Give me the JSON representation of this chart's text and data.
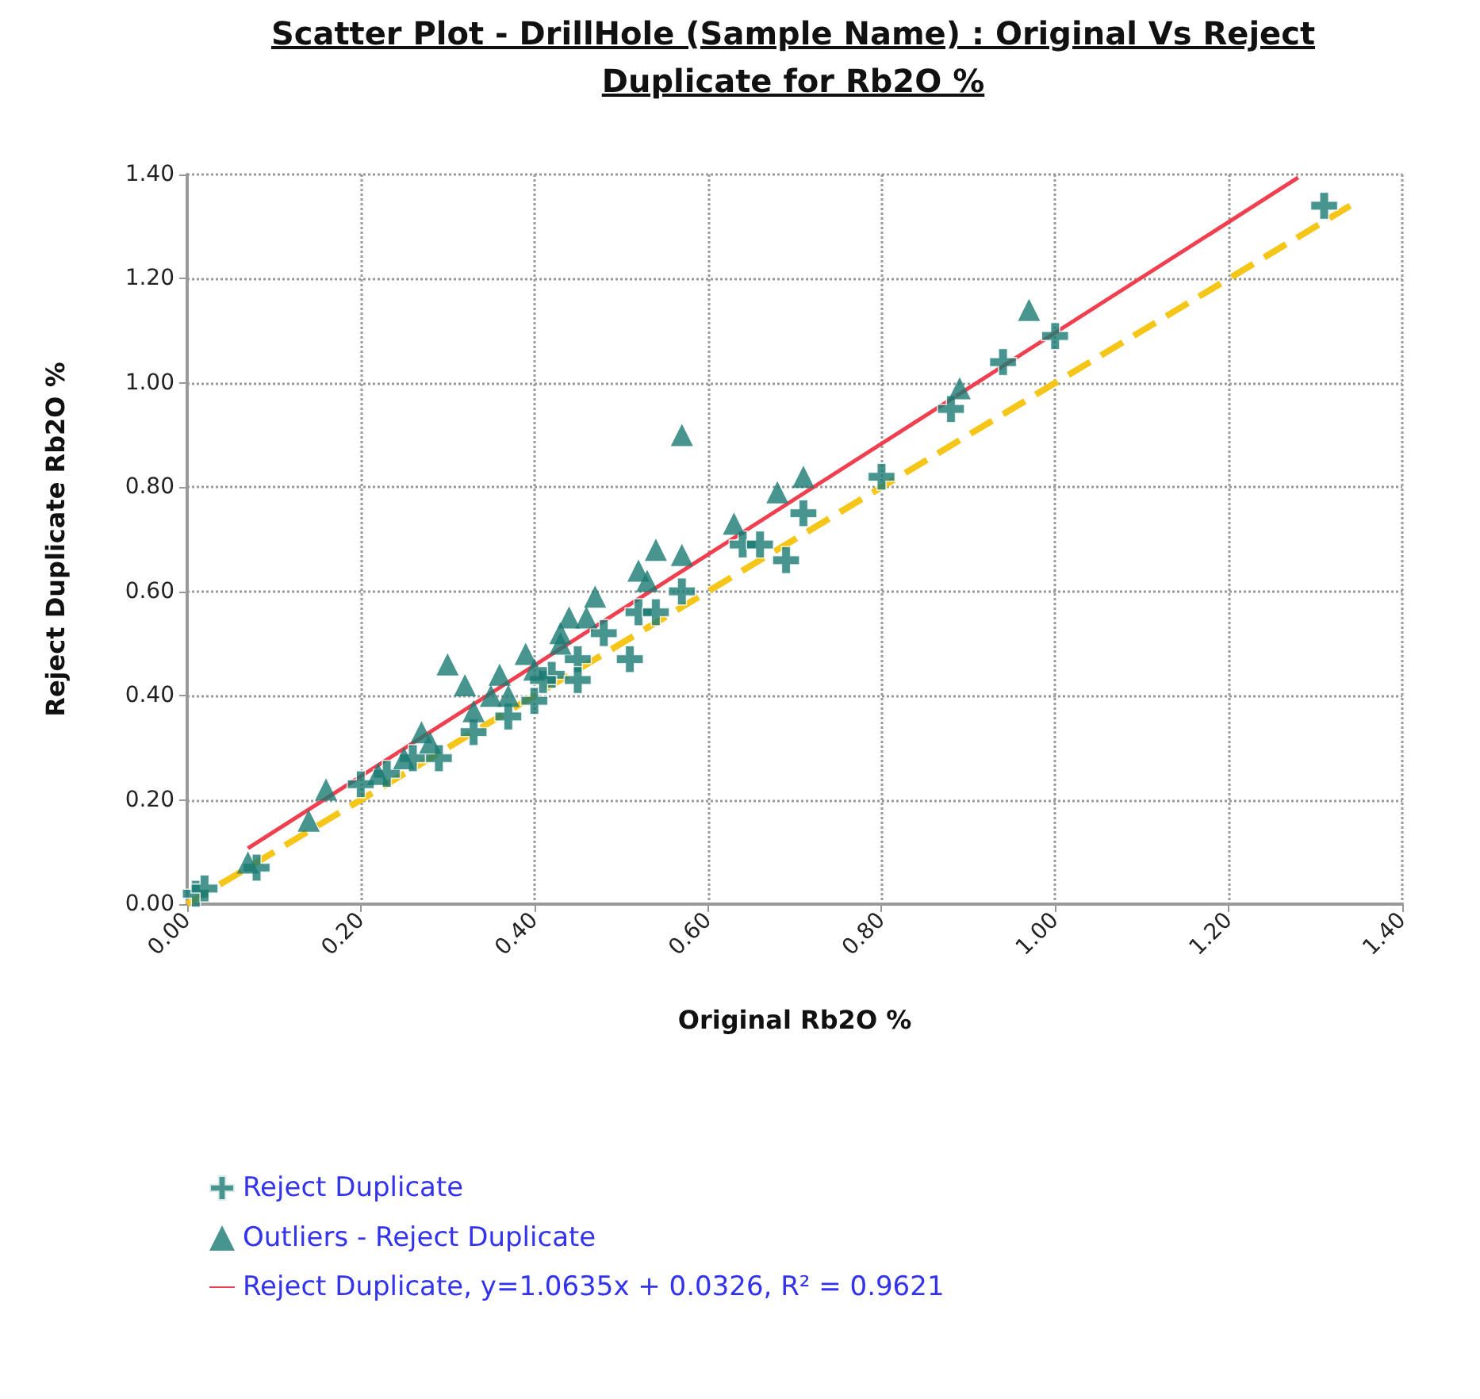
{
  "chart_data": {
    "type": "scatter",
    "title": "Scatter Plot - DrillHole (Sample Name) : Original Vs Reject Duplicate for Rb2O %",
    "xlabel": "Original Rb2O %",
    "ylabel": "Reject Duplicate Rb2O %",
    "xlim": [
      0,
      1.4
    ],
    "ylim": [
      0,
      1.4
    ],
    "xticks": [
      {
        "value": 0,
        "label": "0.00"
      },
      {
        "value": 0.2,
        "label": "0.20"
      },
      {
        "value": 0.4,
        "label": "0.40"
      },
      {
        "value": 0.6,
        "label": "0.60"
      },
      {
        "value": 0.8,
        "label": "0.80"
      },
      {
        "value": 1,
        "label": "1.00"
      },
      {
        "value": 1.2,
        "label": "1.20"
      },
      {
        "value": 1.4,
        "label": "1.40"
      }
    ],
    "yticks": [
      {
        "value": 0,
        "label": "0.00"
      },
      {
        "value": 0.2,
        "label": "0.20"
      },
      {
        "value": 0.4,
        "label": "0.40"
      },
      {
        "value": 0.6,
        "label": "0.60"
      },
      {
        "value": 0.8,
        "label": "0.80"
      },
      {
        "value": 1,
        "label": "1.00"
      },
      {
        "value": 1.2,
        "label": "1.20"
      },
      {
        "value": 1.4,
        "label": "1.40"
      }
    ],
    "grid": true,
    "legend": "bottom left",
    "series": [
      {
        "type": "line",
        "color": "#f5c518",
        "line_style": "dashed",
        "marker": "none",
        "x": [
          0,
          1.34
        ],
        "values": [
          0,
          1.34
        ]
      },
      {
        "name": "Reject Duplicate",
        "marker": "cross",
        "color": "#1a7a73",
        "x": [
          0.01,
          0.02,
          0.08,
          0.2,
          0.23,
          0.26,
          0.29,
          0.33,
          0.37,
          0.4,
          0.42,
          0.41,
          0.45,
          0.45,
          0.48,
          0.51,
          0.52,
          0.54,
          0.57,
          0.64,
          0.66,
          0.69,
          0.71,
          0.8,
          0.88,
          0.94,
          1.0,
          1.31
        ],
        "values": [
          0.02,
          0.03,
          0.07,
          0.23,
          0.25,
          0.28,
          0.28,
          0.33,
          0.36,
          0.39,
          0.44,
          0.43,
          0.47,
          0.43,
          0.52,
          0.47,
          0.56,
          0.56,
          0.6,
          0.69,
          0.69,
          0.66,
          0.75,
          0.82,
          0.95,
          1.04,
          1.09,
          1.34
        ]
      },
      {
        "name": "Outliers - Reject Duplicate",
        "marker": "triangle",
        "color": "#1a7a73",
        "x": [
          0.07,
          0.14,
          0.16,
          0.22,
          0.25,
          0.27,
          0.28,
          0.3,
          0.32,
          0.33,
          0.35,
          0.36,
          0.37,
          0.39,
          0.4,
          0.43,
          0.43,
          0.44,
          0.46,
          0.47,
          0.52,
          0.53,
          0.54,
          0.57,
          0.57,
          0.63,
          0.68,
          0.71,
          0.89,
          0.97
        ],
        "values": [
          0.08,
          0.16,
          0.22,
          0.25,
          0.28,
          0.33,
          0.31,
          0.46,
          0.42,
          0.37,
          0.4,
          0.44,
          0.4,
          0.48,
          0.45,
          0.5,
          0.52,
          0.55,
          0.55,
          0.59,
          0.64,
          0.62,
          0.68,
          0.67,
          0.9,
          0.73,
          0.79,
          0.82,
          0.99,
          1.14
        ]
      },
      {
        "name": "Reject Duplicate, y=1.0635x + 0.0326, R² = 0.9621",
        "type": "line",
        "marker": "none",
        "line_style": "solid",
        "color": "#f04050",
        "x": [
          0.07,
          1.28
        ],
        "values": [
          0.107,
          1.394
        ]
      }
    ]
  }
}
